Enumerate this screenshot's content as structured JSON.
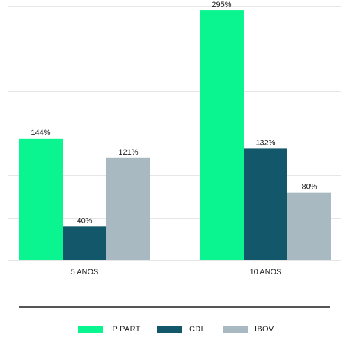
{
  "chart_data": {
    "type": "bar",
    "categories": [
      "5 ANOS",
      "10 ANOS"
    ],
    "series": [
      {
        "name": "IP PART",
        "color": "#0af58f",
        "values": [
          144,
          295
        ],
        "labels": [
          "144%",
          "295%"
        ]
      },
      {
        "name": "CDI",
        "color": "#12576a",
        "values": [
          40,
          132
        ],
        "labels": [
          "40%",
          "132%"
        ]
      },
      {
        "name": "IBOV",
        "color": "#a8b9c2",
        "values": [
          121,
          80
        ],
        "labels": [
          "121%",
          "80%"
        ]
      }
    ],
    "ylim": [
      0,
      300
    ],
    "value_suffix": "%",
    "grid": true,
    "legend_position": "bottom",
    "axis_color": "#555555",
    "grid_color": "#e6e6e6"
  }
}
